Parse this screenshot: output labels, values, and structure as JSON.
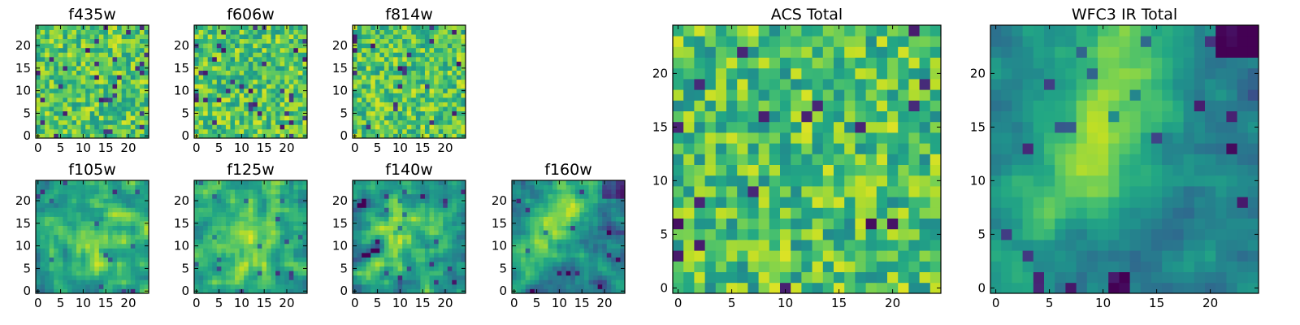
{
  "chart_data": [
    {
      "type": "heatmap",
      "title": "f435w",
      "xlim": [
        -0.5,
        24.5
      ],
      "ylim": [
        -0.5,
        24.5
      ],
      "xticks": [
        "0",
        "5",
        "10",
        "15",
        "20"
      ],
      "yticks": [
        "0",
        "5",
        "10",
        "15",
        "20"
      ],
      "colormap": "viridis",
      "grid": false
    },
    {
      "type": "heatmap",
      "title": "f606w",
      "xlim": [
        -0.5,
        24.5
      ],
      "ylim": [
        -0.5,
        24.5
      ],
      "xticks": [
        "0",
        "5",
        "10",
        "15",
        "20"
      ],
      "yticks": [
        "0",
        "5",
        "10",
        "15",
        "20"
      ],
      "colormap": "viridis",
      "grid": false
    },
    {
      "type": "heatmap",
      "title": "f814w",
      "xlim": [
        -0.5,
        24.5
      ],
      "ylim": [
        -0.5,
        24.5
      ],
      "xticks": [
        "0",
        "5",
        "10",
        "15",
        "20"
      ],
      "yticks": [
        "0",
        "5",
        "10",
        "15",
        "20"
      ],
      "colormap": "viridis",
      "grid": false
    },
    {
      "type": "heatmap",
      "title": "f105w",
      "xlim": [
        -0.5,
        24.5
      ],
      "ylim": [
        -0.5,
        24.5
      ],
      "xticks": [
        "0",
        "5",
        "10",
        "15",
        "20"
      ],
      "yticks": [
        "0",
        "5",
        "10",
        "15",
        "20"
      ],
      "colormap": "viridis",
      "grid": false
    },
    {
      "type": "heatmap",
      "title": "f125w",
      "xlim": [
        -0.5,
        24.5
      ],
      "ylim": [
        -0.5,
        24.5
      ],
      "xticks": [
        "0",
        "5",
        "10",
        "15",
        "20"
      ],
      "yticks": [
        "0",
        "5",
        "10",
        "15",
        "20"
      ],
      "colormap": "viridis",
      "grid": false
    },
    {
      "type": "heatmap",
      "title": "f140w",
      "xlim": [
        -0.5,
        24.5
      ],
      "ylim": [
        -0.5,
        24.5
      ],
      "xticks": [
        "0",
        "5",
        "10",
        "15",
        "20"
      ],
      "yticks": [
        "0",
        "5",
        "10",
        "15",
        "20"
      ],
      "colormap": "viridis",
      "grid": false
    },
    {
      "type": "heatmap",
      "title": "f160w",
      "xlim": [
        -0.5,
        24.5
      ],
      "ylim": [
        -0.5,
        24.5
      ],
      "xticks": [
        "0",
        "5",
        "10",
        "15",
        "20"
      ],
      "yticks": [
        "0",
        "5",
        "10",
        "15",
        "20"
      ],
      "colormap": "viridis",
      "grid": false
    },
    {
      "type": "heatmap",
      "title": "ACS Total",
      "xlim": [
        -0.5,
        24.5
      ],
      "ylim": [
        -0.5,
        24.5
      ],
      "xticks": [
        "0",
        "5",
        "10",
        "15",
        "20"
      ],
      "yticks": [
        "0",
        "5",
        "10",
        "15",
        "20"
      ],
      "colormap": "viridis",
      "grid": false
    },
    {
      "type": "heatmap",
      "title": "WFC3 IR Total",
      "xlim": [
        -0.5,
        24.5
      ],
      "ylim": [
        -0.5,
        24.5
      ],
      "xticks": [
        "0",
        "5",
        "10",
        "15",
        "20"
      ],
      "yticks": [
        "0",
        "5",
        "10",
        "15",
        "20"
      ],
      "colormap": "viridis",
      "grid": false
    }
  ],
  "colors": {
    "viridis_low": "#440154",
    "viridis_mid": "#21918c",
    "viridis_high": "#fde725"
  }
}
